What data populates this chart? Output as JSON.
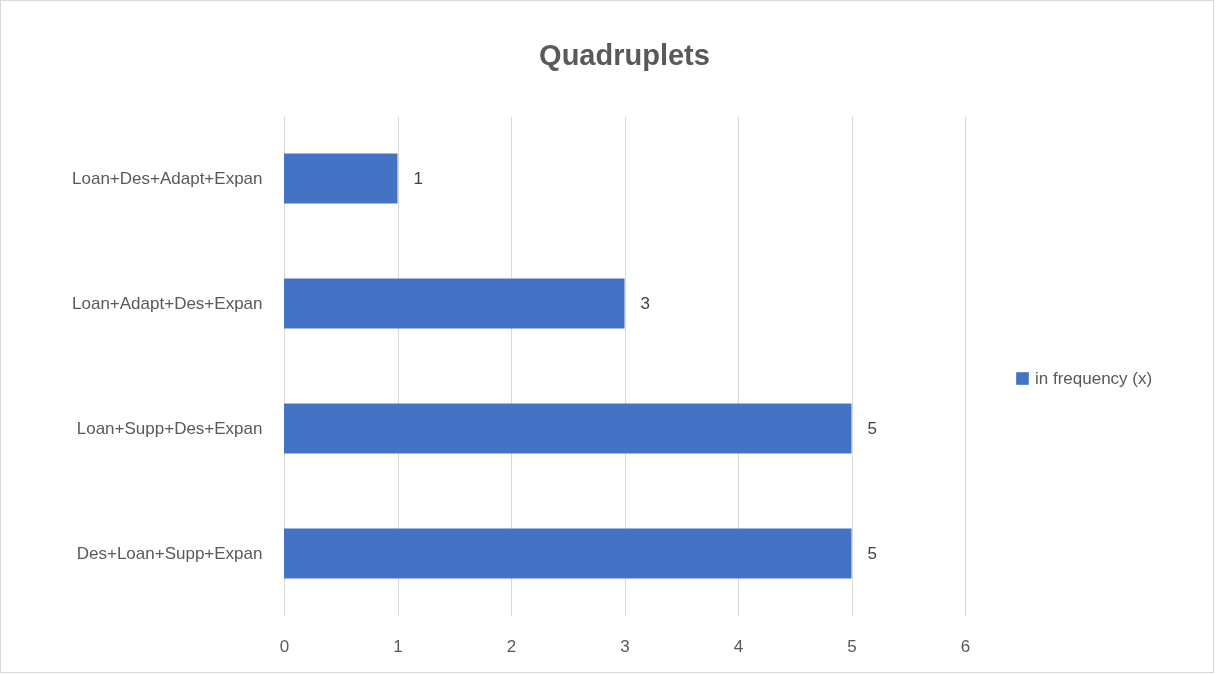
{
  "chart_data": {
    "type": "bar",
    "orientation": "horizontal",
    "title": "Quadruplets",
    "categories": [
      "Loan+Des+Adapt+Expan",
      "Loan+Adapt+Des+Expan",
      "Loan+Supp+Des+Expan",
      "Des+Loan+Supp+Expan"
    ],
    "series": [
      {
        "name": "in frequency (x)",
        "color": "#4472c4",
        "values": [
          1,
          3,
          5,
          5
        ]
      }
    ],
    "xlim": [
      0,
      6
    ],
    "xticks": [
      0,
      1,
      2,
      3,
      4,
      5,
      6
    ],
    "grid": "x",
    "legend": "right",
    "data_labels": true
  }
}
